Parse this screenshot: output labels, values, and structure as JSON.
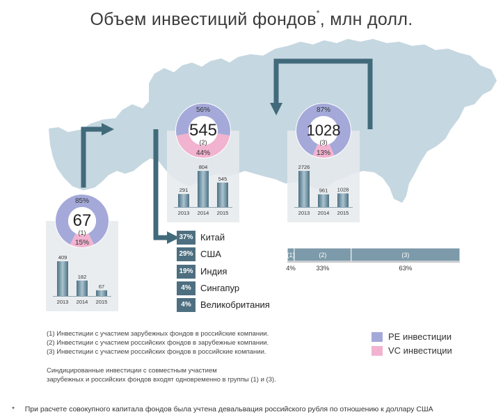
{
  "title": "Объем инвестиций фондов",
  "title_mark": "*",
  "title_units": ", млн долл.",
  "colors": {
    "pe": "#a4a9d9",
    "vc": "#f1b3cf",
    "arrow": "#416a7b",
    "map": "#c5d7e0",
    "bar_dark": "#4d7184",
    "bar_light": "#aac3cf",
    "panel": "#e6eaec",
    "country_box": "#4d6f80",
    "stack_bar": "#7c9aa9"
  },
  "chart_data": [
    {
      "type": "pie",
      "name": "group-1",
      "center_value": "67",
      "center_group": "(1)",
      "slices": [
        {
          "label": "PE инвестиции",
          "value": 85,
          "text": "85%"
        },
        {
          "label": "VC инвестиции",
          "value": 15,
          "text": "15%"
        }
      ]
    },
    {
      "type": "bar",
      "name": "group-1-bars",
      "categories": [
        "2013",
        "2014",
        "2015"
      ],
      "values": [
        409,
        182,
        67
      ],
      "ylim": [
        0,
        409
      ]
    },
    {
      "type": "pie",
      "name": "group-2",
      "center_value": "545",
      "center_group": "(2)",
      "slices": [
        {
          "label": "PE инвестиции",
          "value": 56,
          "text": "56%"
        },
        {
          "label": "VC инвестиции",
          "value": 44,
          "text": "44%"
        }
      ]
    },
    {
      "type": "bar",
      "name": "group-2-bars",
      "categories": [
        "2013",
        "2014",
        "2015"
      ],
      "values": [
        291,
        804,
        545
      ],
      "ylim": [
        0,
        804
      ]
    },
    {
      "type": "pie",
      "name": "group-3",
      "center_value": "1028",
      "center_group": "(3)",
      "slices": [
        {
          "label": "PE инвестиции",
          "value": 87,
          "text": "87%"
        },
        {
          "label": "VC инвестиции",
          "value": 13,
          "text": "13%"
        }
      ]
    },
    {
      "type": "bar",
      "name": "group-3-bars",
      "categories": [
        "2013",
        "2014",
        "2015"
      ],
      "values": [
        2726,
        961,
        1028
      ],
      "ylim": [
        0,
        2726
      ]
    },
    {
      "type": "bar",
      "name": "group-share-stacked",
      "segments": [
        {
          "label": "(1)",
          "value": 4,
          "text": "4%"
        },
        {
          "label": "(2)",
          "value": 33,
          "text": "33%"
        },
        {
          "label": "(3)",
          "value": 63,
          "text": "63%"
        }
      ]
    },
    {
      "type": "table",
      "name": "countries",
      "rows": [
        {
          "pct": "37%",
          "country": "Китай"
        },
        {
          "pct": "29%",
          "country": "США"
        },
        {
          "pct": "19%",
          "country": "Индия"
        },
        {
          "pct": "4%",
          "country": "Сингапур"
        },
        {
          "pct": "4%",
          "country": "Великобритания"
        }
      ]
    }
  ],
  "notes": [
    "(1)  Инвестиции с участием зарубежных фондов в российские компании.",
    "(2)  Инвестиции с участием российских фондов в зарубежные компании.",
    "(3)  Инвестиции с участием российских фондов в российские компании."
  ],
  "syndicated_note": [
    "Синдицированные инвестиции с совместным участием",
    "зарубежных и российских фондов входят одновременно в группы (1) и (3)."
  ],
  "legend": [
    {
      "label": "PE инвестиции",
      "color": "#a4a9d9"
    },
    {
      "label": "VC инвестиции",
      "color": "#f1b3cf"
    }
  ],
  "footnote": {
    "mark": "*",
    "text": "При расчете совокупного капитала фондов была учтена девальвация российского рубля по отношению к доллару США"
  }
}
